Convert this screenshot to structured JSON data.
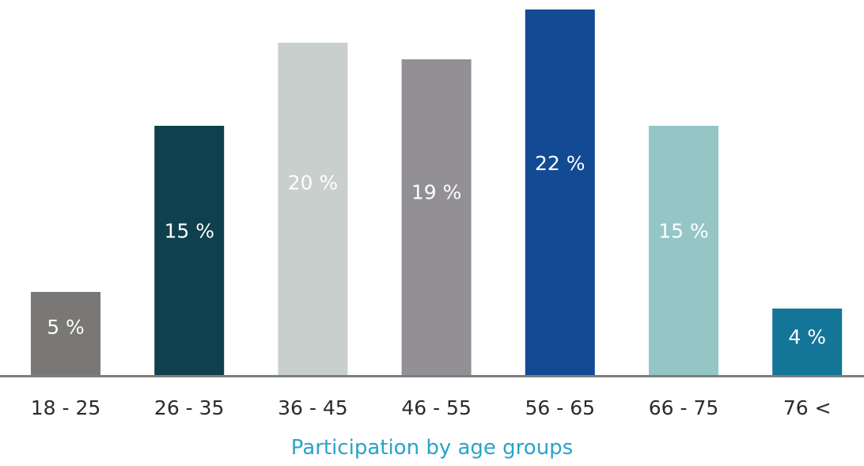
{
  "chart_data": {
    "type": "bar",
    "categories": [
      "18 - 25",
      "26 - 35",
      "36 - 45",
      "46 - 55",
      "56 - 65",
      "66 - 75",
      "76 <"
    ],
    "values": [
      5,
      15,
      20,
      19,
      22,
      15,
      4
    ],
    "value_labels": [
      "5 %",
      "15 %",
      "20 %",
      "19 %",
      "22 %",
      "15 %",
      "4 %"
    ],
    "bar_colors": [
      "#7a7876",
      "#0e404e",
      "#c8cfcd",
      "#929095",
      "#124a94",
      "#94c6c6",
      "#137597"
    ],
    "xlabel": "Participation by age groups",
    "ylabel": "",
    "ylim": [
      0,
      22
    ],
    "grid": false,
    "legend": "none"
  },
  "colors": {
    "axis": "#7d7d7d",
    "title": "#29a3c9",
    "tick_text": "#2b2b2b",
    "bar_label_text": "#ffffff"
  }
}
